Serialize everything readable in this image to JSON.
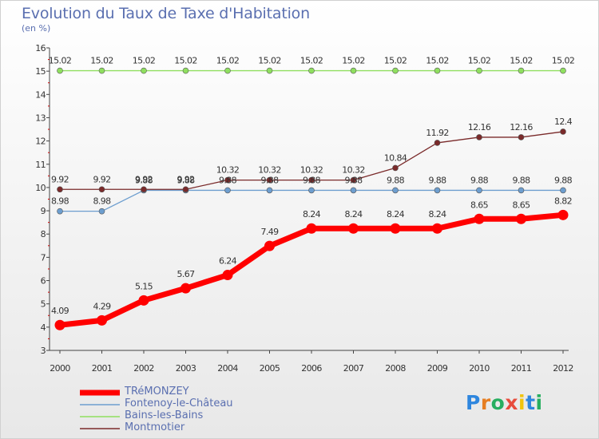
{
  "header": {
    "title": "Evolution du Taux de Taxe d'Habitation",
    "unit": "(en %)"
  },
  "logo": {
    "text": "Proxiti",
    "letters": [
      "P",
      "r",
      "o",
      "x",
      "i",
      "t",
      "i"
    ],
    "colors": [
      "#2e86de",
      "#e67e22",
      "#27ae60",
      "#e74c3c",
      "#f1c40f",
      "#2e86de",
      "#27ae60"
    ]
  },
  "chart_data": {
    "type": "line",
    "title": "Evolution du Taux de Taxe d'Habitation",
    "ylabel": "(en %)",
    "x": [
      "2000",
      "2001",
      "2002",
      "2003",
      "2004",
      "2005",
      "2006",
      "2007",
      "2008",
      "2009",
      "2010",
      "2011",
      "2012"
    ],
    "ylim": [
      3,
      16
    ],
    "yticks": [
      3,
      4,
      5,
      6,
      7,
      8,
      9,
      10,
      11,
      12,
      13,
      14,
      15,
      16
    ],
    "grid": false,
    "legend_position": "bottom-left",
    "series": [
      {
        "name": "TRéMONZEY",
        "color": "#ff0000",
        "values": [
          4.09,
          4.29,
          5.15,
          5.67,
          6.24,
          7.49,
          8.24,
          8.24,
          8.24,
          8.24,
          8.65,
          8.65,
          8.82
        ],
        "labels": [
          "4.09",
          "4.29",
          "5.15",
          "5.67",
          "6.24",
          "7.49",
          "8.24",
          "8.24",
          "8.24",
          "8.24",
          "8.65",
          "8.65",
          "8.82"
        ]
      },
      {
        "name": "Fontenoy-le-Château",
        "color": "#6d9ecf",
        "values": [
          8.98,
          8.98,
          9.88,
          9.88,
          9.88,
          9.88,
          9.88,
          9.88,
          9.88,
          9.88,
          9.88,
          9.88,
          9.88
        ],
        "labels": [
          "8.98",
          "8.98",
          "9.88",
          "9.88",
          "9.88",
          "9.88",
          "9.88",
          "9.88",
          "9.88",
          "9.88",
          "9.88",
          "9.88",
          "9.88"
        ]
      },
      {
        "name": "Bains-les-Bains",
        "color": "#8fdf5f",
        "values": [
          15.02,
          15.02,
          15.02,
          15.02,
          15.02,
          15.02,
          15.02,
          15.02,
          15.02,
          15.02,
          15.02,
          15.02,
          15.02
        ],
        "labels": [
          "15.02",
          "15.02",
          "15.02",
          "15.02",
          "15.02",
          "15.02",
          "15.02",
          "15.02",
          "15.02",
          "15.02",
          "15.02",
          "15.02",
          "15.02"
        ]
      },
      {
        "name": "Montmotier",
        "color": "#7a2a2a",
        "values": [
          9.92,
          9.92,
          9.92,
          9.92,
          10.32,
          10.32,
          10.32,
          10.32,
          10.84,
          11.92,
          12.16,
          12.16,
          12.4
        ],
        "labels": [
          "9.92",
          "9.92",
          "9.92",
          "9.92",
          "10.32",
          "10.32",
          "10.32",
          "10.32",
          "10.84",
          "11.92",
          "12.16",
          "12.16",
          "12.4"
        ]
      }
    ]
  }
}
